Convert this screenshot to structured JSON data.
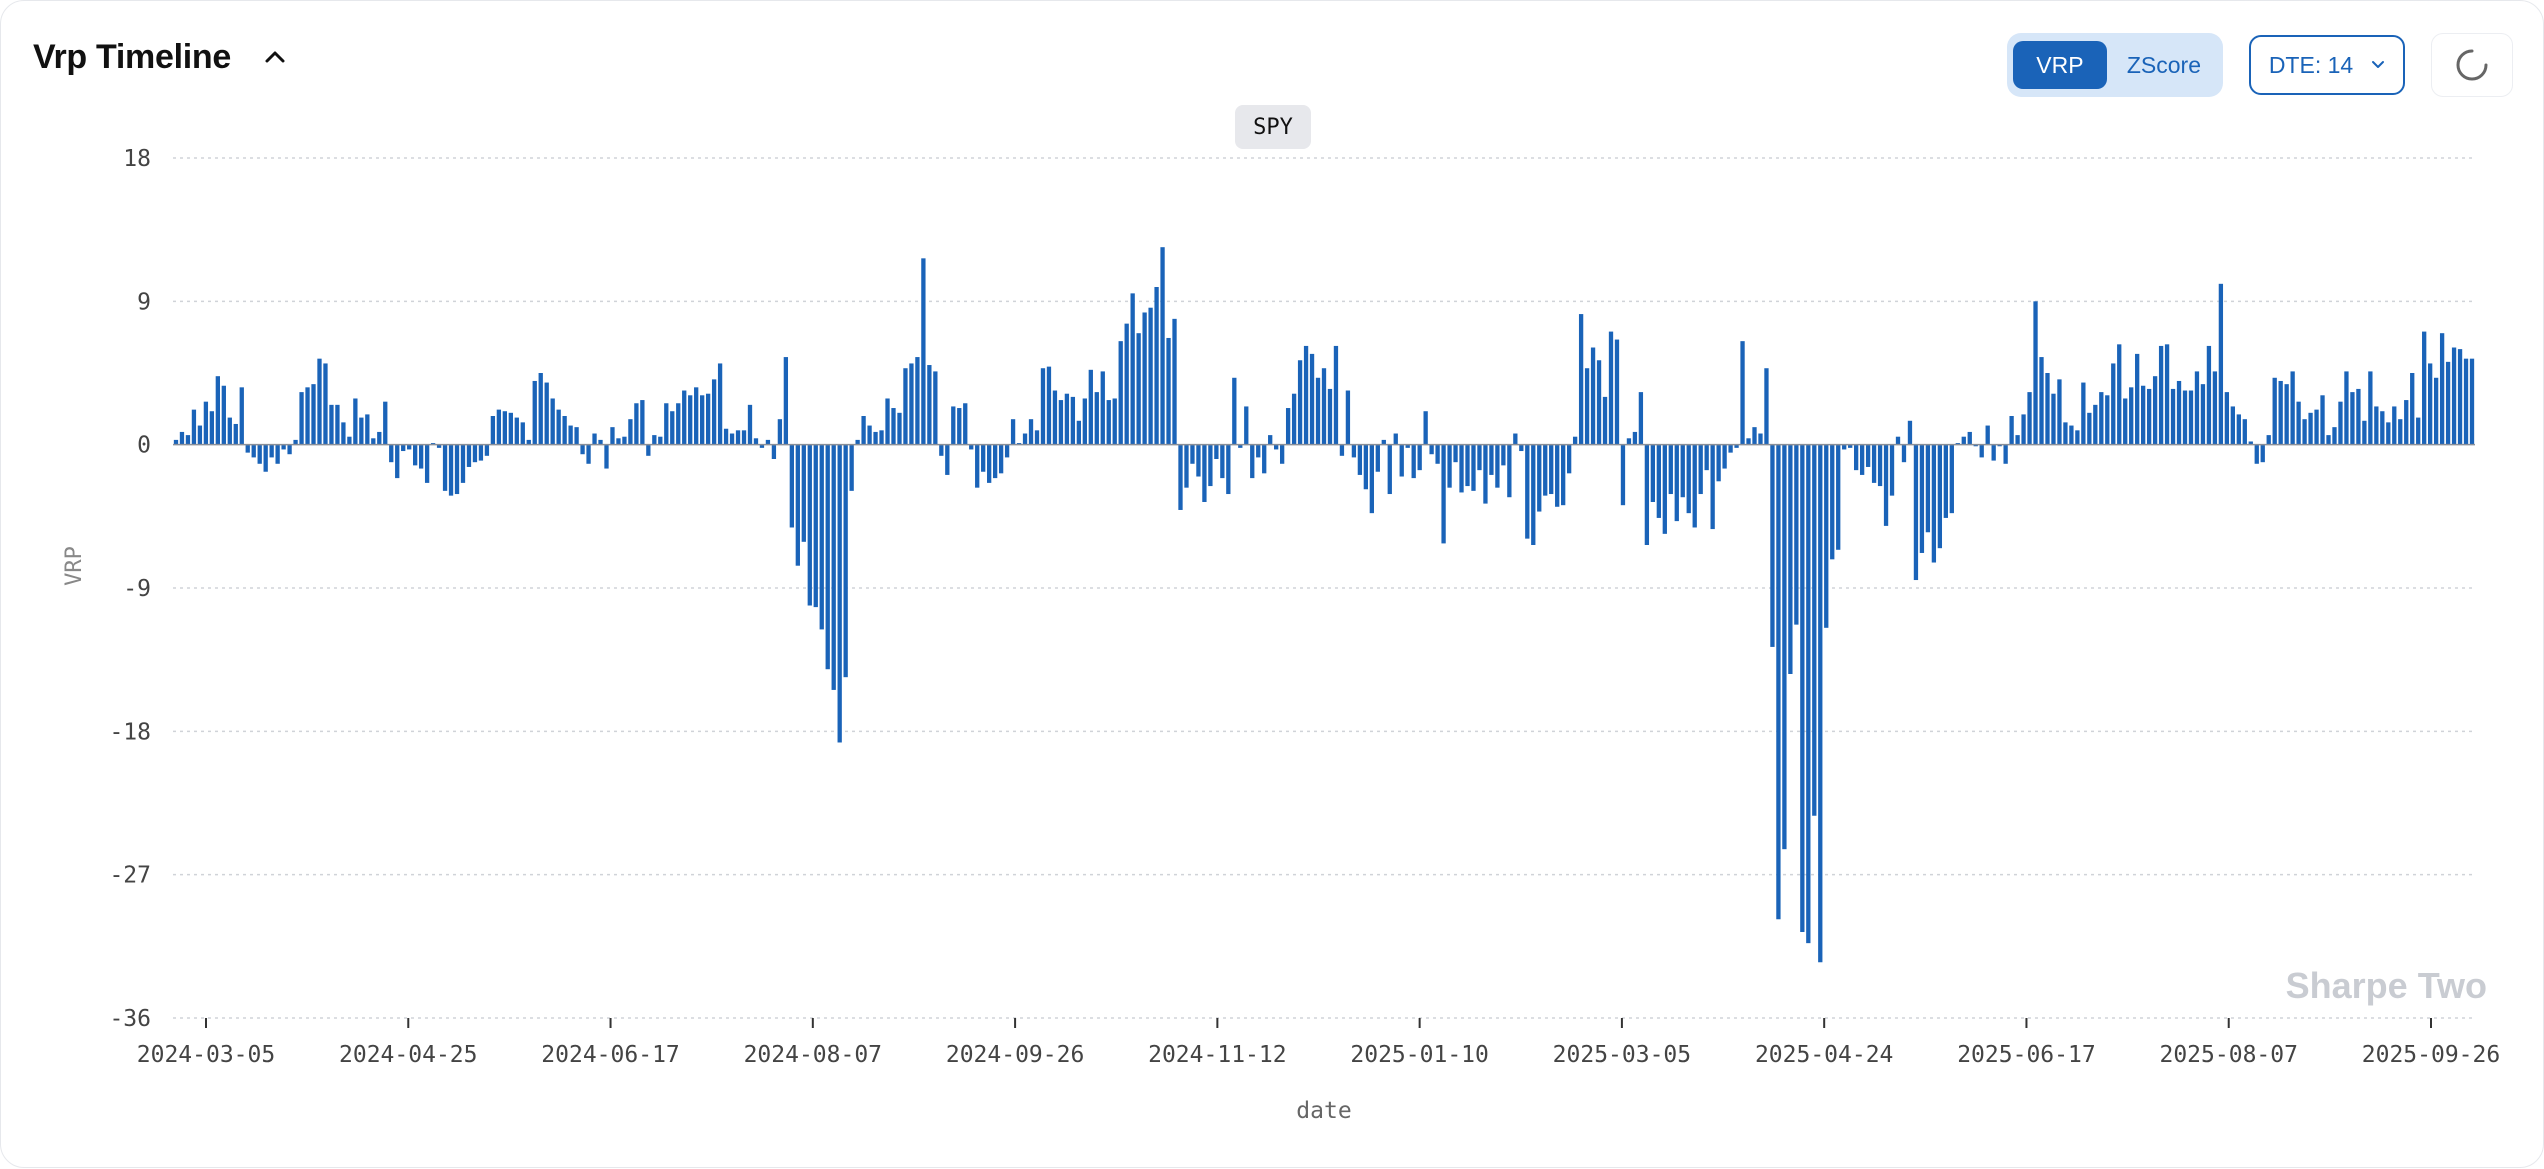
{
  "header": {
    "title": "Vrp Timeline"
  },
  "controls": {
    "mode_options": [
      "VRP",
      "ZScore"
    ],
    "active_mode": "VRP",
    "dte_label": "DTE: 14"
  },
  "symbol": "SPY",
  "watermark": "Sharpe Two",
  "colors": {
    "bar": "#1a63b8",
    "accent": "#1a63b8",
    "grid": "#d0d3d8",
    "axis_text": "#444444"
  },
  "chart_data": {
    "type": "bar",
    "title": "",
    "xlabel": "date",
    "ylabel": "VRP",
    "ylim": [
      -36,
      18
    ],
    "yticks": [
      18,
      9,
      0,
      -9,
      -18,
      -27,
      -36
    ],
    "xtick_labels": [
      "2024-03-05",
      "2024-04-25",
      "2024-06-17",
      "2024-08-07",
      "2024-09-26",
      "2024-11-12",
      "2025-01-10",
      "2025-03-05",
      "2025-04-24",
      "2025-06-17",
      "2025-08-07",
      "2025-09-26"
    ],
    "grid": true,
    "series": [
      {
        "values": [
          0.3,
          0.8,
          0.6,
          2.2,
          1.2,
          2.7,
          2.1,
          4.3,
          3.7,
          1.7,
          1.3,
          3.6,
          -0.5,
          -0.8,
          -1.2,
          -1.7,
          -0.8,
          -1.2,
          -0.3,
          -0.6,
          0.3,
          3.3,
          3.6,
          3.8,
          5.4,
          5.1,
          2.5,
          2.5,
          1.4,
          0.5,
          2.9,
          1.7,
          1.9,
          0.4,
          0.8,
          2.7,
          -1.1,
          -2.1,
          -0.4,
          -0.3,
          -1.3,
          -1.5,
          -2.4,
          0.1,
          -0.2,
          -2.9,
          -3.2,
          -3.1,
          -2.4,
          -1.4,
          -1.1,
          -1.0,
          -0.7,
          1.8,
          2.2,
          2.1,
          2.0,
          1.7,
          1.4,
          0.3,
          4.0,
          4.5,
          3.9,
          2.9,
          2.2,
          1.8,
          1.2,
          1.1,
          -0.6,
          -1.2,
          0.7,
          0.3,
          -1.5,
          1.1,
          0.4,
          0.5,
          1.6,
          2.6,
          2.8,
          -0.7,
          0.6,
          0.5,
          2.6,
          2.1,
          2.6,
          3.4,
          3.1,
          3.6,
          3.1,
          3.2,
          4.1,
          5.1,
          1.0,
          0.7,
          0.9,
          0.9,
          2.5,
          0.4,
          -0.2,
          0.3,
          -0.9,
          1.6,
          5.5,
          -5.2,
          -7.6,
          -6.1,
          -10.1,
          -10.2,
          -11.6,
          -14.1,
          -15.4,
          -18.7,
          -14.6,
          -2.9,
          0.3,
          1.8,
          1.2,
          0.8,
          0.9,
          2.9,
          2.3,
          2.0,
          4.8,
          5.1,
          5.5,
          11.7,
          5.0,
          4.6,
          -0.7,
          -1.9,
          2.4,
          2.3,
          2.6,
          -0.3,
          -2.7,
          -1.7,
          -2.4,
          -2.1,
          -1.8,
          -0.8,
          1.6,
          0.1,
          0.7,
          1.6,
          0.9,
          4.8,
          4.9,
          3.4,
          2.8,
          3.2,
          3.0,
          1.5,
          2.9,
          4.7,
          3.3,
          4.6,
          2.8,
          2.9,
          6.5,
          7.6,
          9.5,
          7.0,
          8.3,
          8.6,
          9.9,
          12.4,
          6.7,
          7.9,
          -4.1,
          -2.7,
          -1.2,
          -2.0,
          -3.6,
          -2.6,
          -0.9,
          -2.1,
          -3.1,
          4.2,
          -0.2,
          2.4,
          -2.1,
          -0.8,
          -1.8,
          0.6,
          -0.3,
          -1.2,
          2.3,
          3.2,
          5.3,
          6.2,
          5.7,
          4.2,
          4.8,
          3.5,
          6.2,
          -0.7,
          3.4,
          -0.8,
          -1.9,
          -2.8,
          -4.3,
          -1.7,
          0.3,
          -3.1,
          0.7,
          -2.0,
          -0.2,
          -2.1,
          -1.6,
          2.1,
          -0.6,
          -1.2,
          -6.2,
          -2.7,
          -1.1,
          -3.0,
          -2.6,
          -2.9,
          -1.6,
          -3.7,
          -1.9,
          -2.7,
          -1.3,
          -3.3,
          0.7,
          -0.4,
          -5.9,
          -6.3,
          -4.2,
          -3.2,
          -3.1,
          -3.9,
          -3.8,
          -1.8,
          0.5,
          8.2,
          4.8,
          6.1,
          5.3,
          3.0,
          7.1,
          6.6,
          -3.8,
          0.4,
          0.8,
          3.3,
          -6.3,
          -3.6,
          -4.6,
          -5.6,
          -3.1,
          -4.8,
          -3.3,
          -4.3,
          -5.2,
          -3.1,
          -1.6,
          -5.3,
          -2.3,
          -1.5,
          -0.5,
          -0.2,
          6.5,
          0.4,
          1.1,
          0.7,
          4.8,
          -12.7,
          -29.8,
          -25.4,
          -14.4,
          -11.3,
          -30.6,
          -31.3,
          -23.3,
          -32.5,
          -11.5,
          -7.2,
          -6.6,
          -0.3,
          -0.2,
          -1.6,
          -1.9,
          -1.4,
          -2.4,
          -2.6,
          -5.1,
          -3.2,
          0.5,
          -1.1,
          1.5,
          -8.5,
          -6.8,
          -5.5,
          -7.4,
          -6.5,
          -4.6,
          -4.3,
          0.1,
          0.5,
          0.8,
          -0.1,
          -0.8,
          1.2,
          -1.0,
          -0.1,
          -1.2,
          1.8,
          0.6,
          1.9,
          3.3,
          9.0,
          5.5,
          4.5,
          3.2,
          4.1,
          1.4,
          1.2,
          0.9,
          3.9,
          2.0,
          2.5,
          3.3,
          3.1,
          5.1,
          6.3,
          2.9,
          3.6,
          5.7,
          3.7,
          3.5,
          4.3,
          6.2,
          6.3,
          3.5,
          4.0,
          3.4,
          3.4,
          4.6,
          3.8,
          6.2,
          4.6,
          10.1,
          3.3,
          2.4,
          1.9,
          1.6,
          0.2,
          -1.2,
          -1.1,
          0.6,
          4.2,
          4.0,
          3.8,
          4.6,
          2.7,
          1.6,
          2.0,
          2.2,
          3.1,
          0.6,
          1.1,
          2.7,
          4.6,
          3.3,
          3.5,
          1.5,
          4.6,
          2.4,
          2.1,
          1.4,
          2.4,
          1.6,
          2.8,
          4.5,
          1.7,
          7.1,
          5.1,
          4.2,
          7.0,
          5.2,
          6.1,
          6.0,
          5.4,
          5.4
        ]
      }
    ]
  }
}
